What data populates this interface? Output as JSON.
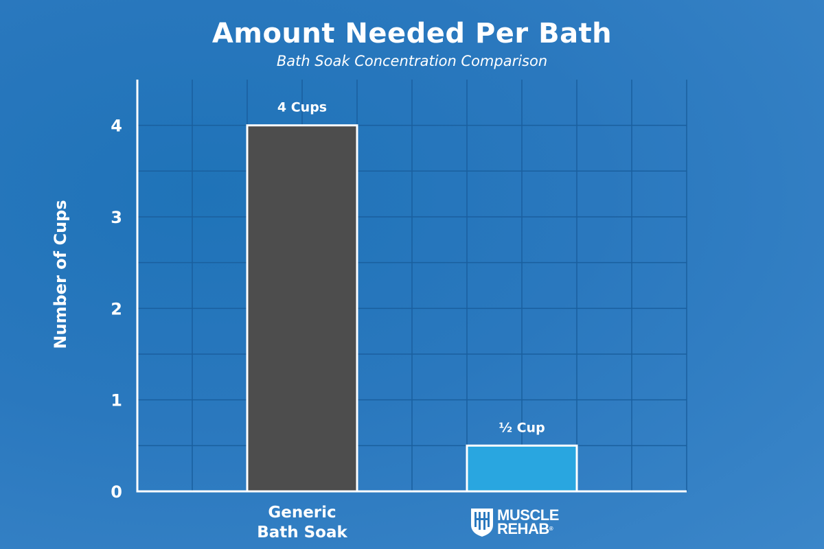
{
  "chart_data": {
    "type": "bar",
    "title": "Amount Needed Per Bath",
    "subtitle": "Bath Soak Concentration Comparison",
    "ylabel": "Number of Cups",
    "xlabel": "",
    "categories": [
      "Generic\nBath Soak",
      "MUSCLE REHAB"
    ],
    "values": [
      4,
      0.5
    ],
    "data_labels": [
      "4 Cups",
      "½ Cup"
    ],
    "bar_colors": [
      "#4d4d4d",
      "#29a6e0"
    ],
    "ylim": [
      0,
      4.5
    ],
    "yticks": [
      0,
      1,
      2,
      3,
      4
    ],
    "grid": true
  },
  "category_labels": {
    "generic_line1": "Generic",
    "generic_line2": "Bath Soak"
  },
  "logo": {
    "line1": "MUSCLE",
    "line2": "REHAB",
    "icon": "muscle-rehab-shield-logo-icon"
  },
  "colors": {
    "background": "#2a78be",
    "grid": "#1a5f9e",
    "axis": "#ffffff",
    "text": "#ffffff"
  }
}
